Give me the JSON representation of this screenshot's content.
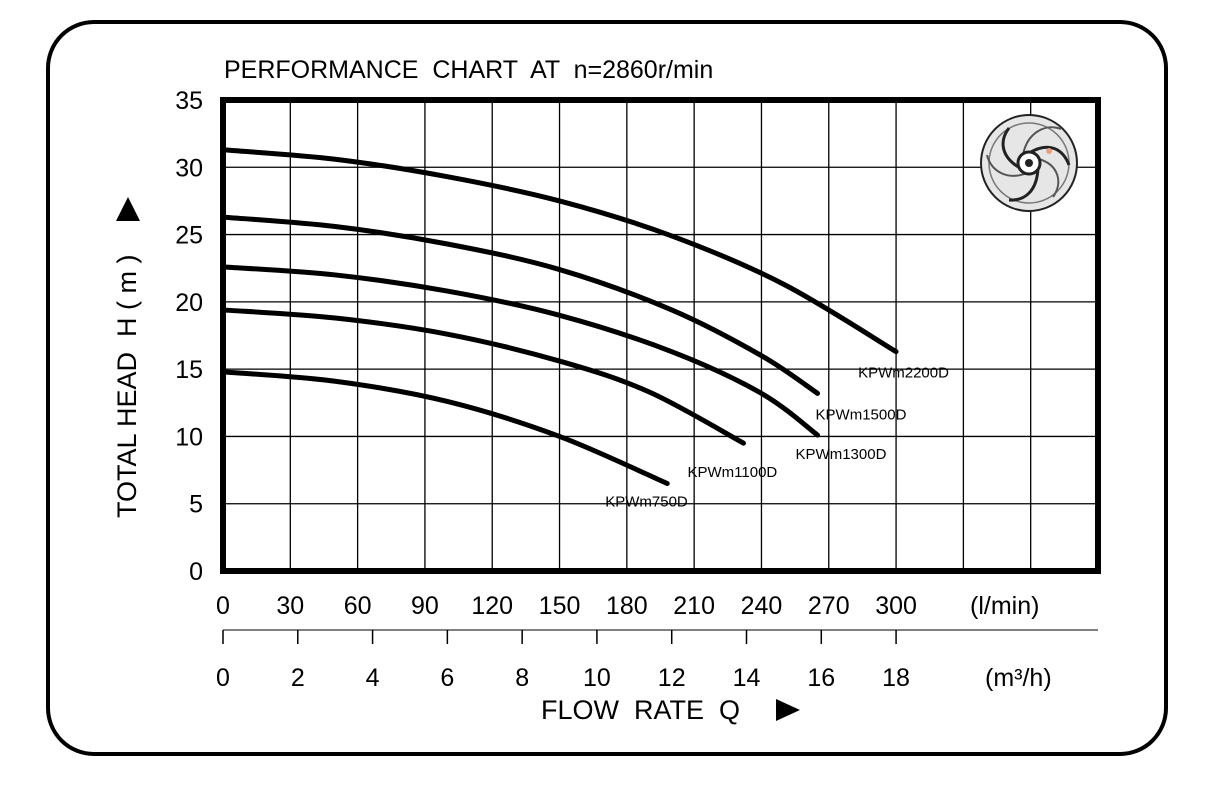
{
  "chart_data": {
    "type": "line",
    "title": "PERFORMANCE  CHART  AT  n=2860r/min",
    "ylabel": "TOTAL HEAD  H ( m )",
    "xlabel": "FLOW  RATE  Q",
    "x_unit_primary": "(l/min)",
    "x_unit_secondary": "(m³/h)",
    "xlim": [
      0,
      390
    ],
    "ylim": [
      0,
      35
    ],
    "grid": true,
    "y_ticks": [
      "0",
      "5",
      "10",
      "15",
      "20",
      "25",
      "30",
      "35"
    ],
    "x_ticks_primary": [
      "0",
      "30",
      "60",
      "90",
      "120",
      "150",
      "180",
      "210",
      "240",
      "270",
      "300"
    ],
    "x_ticks_secondary": [
      "0",
      "2",
      "4",
      "6",
      "8",
      "10",
      "12",
      "14",
      "16",
      "18"
    ],
    "series": [
      {
        "name": "KPWm2200D",
        "x": [
          0,
          50,
          100,
          150,
          200,
          250,
          300
        ],
        "y": [
          31.3,
          30.6,
          29.3,
          27.5,
          24.9,
          21.3,
          16.3
        ]
      },
      {
        "name": "KPWm1500D",
        "x": [
          0,
          50,
          100,
          150,
          200,
          240,
          265
        ],
        "y": [
          26.3,
          25.6,
          24.3,
          22.4,
          19.4,
          16.0,
          13.2
        ]
      },
      {
        "name": "KPWm1300D",
        "x": [
          0,
          50,
          100,
          150,
          200,
          240,
          265
        ],
        "y": [
          22.6,
          22.0,
          20.8,
          19.0,
          16.3,
          13.2,
          10.1
        ]
      },
      {
        "name": "KPWm1100D",
        "x": [
          0,
          50,
          100,
          150,
          190,
          232
        ],
        "y": [
          19.4,
          18.8,
          17.6,
          15.6,
          13.3,
          9.5
        ]
      },
      {
        "name": "KPWm750D",
        "x": [
          0,
          50,
          100,
          150,
          198
        ],
        "y": [
          14.8,
          14.1,
          12.6,
          10.0,
          6.5
        ]
      }
    ]
  }
}
